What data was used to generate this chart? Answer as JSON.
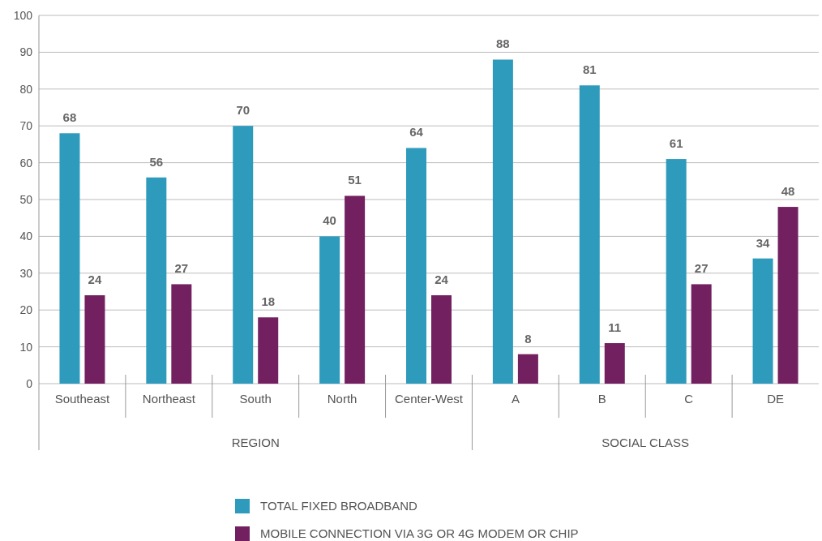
{
  "chart_data": {
    "type": "bar",
    "categories": [
      "Southeast",
      "Northeast",
      "South",
      "North",
      "Center-West",
      "A",
      "B",
      "C",
      "DE"
    ],
    "series": [
      {
        "name": "TOTAL FIXED BROADBAND",
        "color": "#2e9bbd",
        "values": [
          68,
          56,
          70,
          40,
          64,
          88,
          81,
          61,
          34
        ]
      },
      {
        "name": "MOBILE CONNECTION VIA 3G OR 4G MODEM OR CHIP",
        "color": "#722060",
        "values": [
          24,
          27,
          18,
          51,
          24,
          8,
          11,
          27,
          48
        ]
      }
    ],
    "ylim": [
      0,
      100
    ],
    "yticks": [
      0,
      10,
      20,
      30,
      40,
      50,
      60,
      70,
      80,
      90,
      100
    ],
    "grid": "y",
    "legend": "bottom",
    "data_labels": true,
    "annotations": [
      "REGION",
      "SOCIAL CLASS"
    ]
  }
}
